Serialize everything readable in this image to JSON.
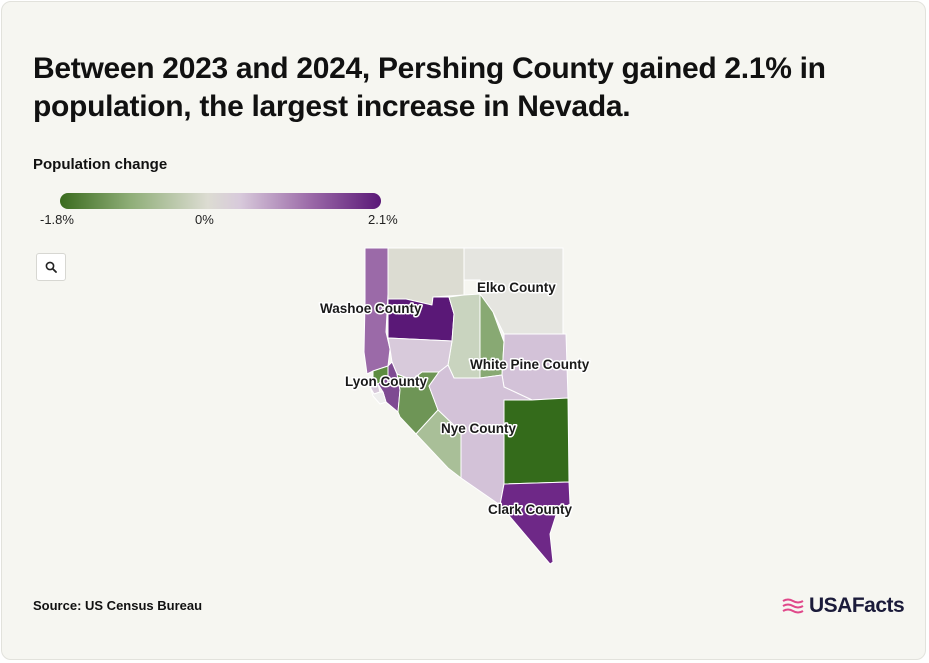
{
  "title": "Between 2023 and 2024, Pershing County gained 2.1% in population, the largest increase in Nevada.",
  "legend": {
    "label": "Population change",
    "min_label": "-1.8%",
    "mid_label": "0%",
    "max_label": "2.1%",
    "min": -1.8,
    "max": 2.1,
    "colors": [
      "#3a6b1e",
      "#8fae78",
      "#dcdcd2",
      "#d8cadb",
      "#9b6aa8",
      "#5a1877"
    ]
  },
  "zoom_button": {
    "icon": "search-icon"
  },
  "map": {
    "region": "Nevada",
    "county_labels": {
      "washoe": "Washoe County",
      "elko": "Elko County",
      "white_pine": "White Pine County",
      "lyon": "Lyon County",
      "nye": "Nye County",
      "clark": "Clark County"
    },
    "colors": {
      "washoe": "#9b6aa8",
      "humboldt": "#dcdcd2",
      "elko": "#e5e5e0",
      "pershing": "#5a1877",
      "churchill": "#d8cadb",
      "lander": "#c9d4bf",
      "eureka": "#88a973",
      "white_pine": "#d3c2d8",
      "storey": "#5c8c3f",
      "carson": "#d8cadb",
      "lyon": "#7e4a92",
      "douglas": "#eeeeee",
      "mineral": "#6e9556",
      "nye": "#d3c2d8",
      "esmeralda": "#a9bf98",
      "lincoln": "#346b1b",
      "clark": "#6e2887"
    }
  },
  "source": "Source: US Census Bureau",
  "brand": {
    "name": "USAFacts",
    "accent": "#e0488a"
  }
}
